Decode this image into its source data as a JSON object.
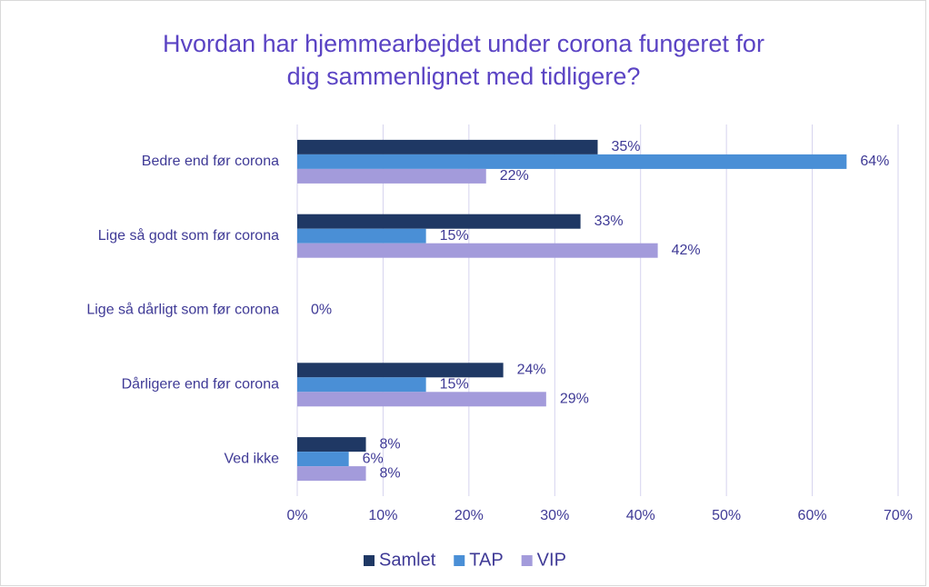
{
  "chart_data": {
    "type": "barh",
    "title": [
      "Hvordan har hjemmearbejdet under corona fungeret for",
      "dig sammenlignet med tidligere?"
    ],
    "categories": [
      "Bedre end før corona",
      "Lige så godt som før corona",
      "Lige så dårligt som før corona",
      "Dårligere end før corona",
      "Ved ikke"
    ],
    "series": [
      {
        "name": "Samlet",
        "color": "#1f3864",
        "values": [
          35,
          33,
          0,
          24,
          8
        ],
        "value_labels": [
          "35%",
          "33%",
          null,
          "24%",
          "8%"
        ]
      },
      {
        "name": "TAP",
        "color": "#4a8fd6",
        "values": [
          64,
          15,
          0,
          15,
          6
        ],
        "value_labels": [
          "64%",
          "15%",
          "0%",
          "15%",
          "6%"
        ]
      },
      {
        "name": "VIP",
        "color": "#a39bdb",
        "values": [
          22,
          42,
          0,
          29,
          8
        ],
        "value_labels": [
          "22%",
          "42%",
          null,
          "29%",
          "8%"
        ]
      }
    ],
    "xlim": [
      0,
      70
    ],
    "xticks": [
      {
        "value": 0,
        "label": "0%"
      },
      {
        "value": 10,
        "label": "10%"
      },
      {
        "value": 20,
        "label": "20%"
      },
      {
        "value": 30,
        "label": "30%"
      },
      {
        "value": 40,
        "label": "40%"
      },
      {
        "value": 50,
        "label": "50%"
      },
      {
        "value": 60,
        "label": "60%"
      },
      {
        "value": 70,
        "label": "70%"
      }
    ],
    "grid": true,
    "legend": "bottom"
  }
}
